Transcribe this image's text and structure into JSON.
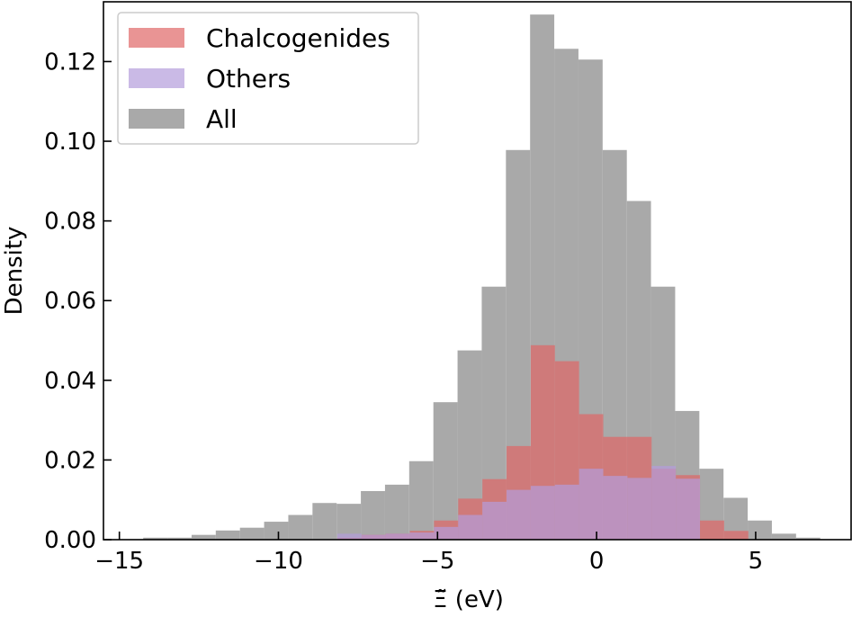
{
  "chart_data": {
    "type": "histogram",
    "xlabel": "Ξ̃ (eV)",
    "ylabel": "Density",
    "xlim": [
      -15.5,
      8
    ],
    "ylim": [
      0,
      0.135
    ],
    "x_ticks": [
      -15,
      -10,
      -5,
      0,
      5
    ],
    "x_tick_labels": [
      "−15",
      "−10",
      "−5",
      "0",
      "5"
    ],
    "y_ticks": [
      0.0,
      0.02,
      0.04,
      0.06,
      0.08,
      0.1,
      0.12
    ],
    "y_tick_labels": [
      "0.00",
      "0.02",
      "0.04",
      "0.06",
      "0.08",
      "0.10",
      "0.12"
    ],
    "legend_position": "upper-left",
    "series": [
      {
        "name": "All",
        "color": "#a9a9a9",
        "bin_start": -14.25,
        "bin_width": 0.76,
        "values": [
          0.0005,
          0.0005,
          0.0012,
          0.0023,
          0.003,
          0.0045,
          0.0062,
          0.0092,
          0.009,
          0.0122,
          0.0138,
          0.0197,
          0.0345,
          0.0475,
          0.0635,
          0.0978,
          0.1318,
          0.1232,
          0.1205,
          0.0978,
          0.085,
          0.0635,
          0.0323,
          0.0178,
          0.0105,
          0.0048,
          0.0015,
          0.0005
        ]
      },
      {
        "name": "Chalcogenides",
        "color": "#e06666",
        "bin_start": -8.15,
        "bin_width": 0.76,
        "values": [
          0.0005,
          0.0012,
          0.0015,
          0.0022,
          0.0048,
          0.0103,
          0.0152,
          0.0235,
          0.0488,
          0.0448,
          0.0315,
          0.0258,
          0.0258,
          0.0178,
          0.0162,
          0.0048,
          0.0022
        ]
      },
      {
        "name": "Others",
        "color": "#b39ddb",
        "bin_start": -8.15,
        "bin_width": 0.76,
        "values": [
          0.0015,
          0.0012,
          0.0015,
          0.0018,
          0.0032,
          0.0062,
          0.0095,
          0.0125,
          0.0135,
          0.0138,
          0.0178,
          0.016,
          0.0155,
          0.0185,
          0.0153
        ]
      }
    ],
    "legend": [
      "Chalcogenides",
      "Others",
      "All"
    ]
  }
}
